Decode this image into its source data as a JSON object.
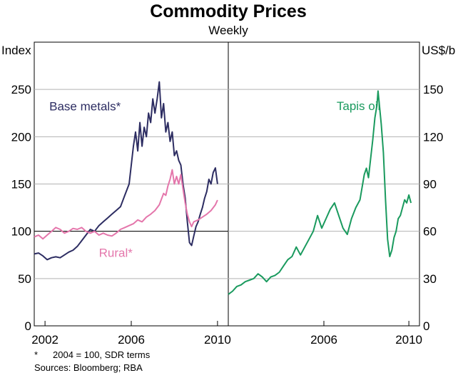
{
  "chart_data": {
    "type": "line",
    "title": "Commodity Prices",
    "subtitle": "Weekly",
    "panels": [
      {
        "unit_label": "Index",
        "y_ticks": [
          0,
          50,
          100,
          150,
          200,
          250
        ],
        "ylim": [
          0,
          300
        ],
        "xlim": [
          2001.5,
          2010.5
        ],
        "x_ticks": [
          "2002",
          "2006",
          "2010"
        ],
        "x_tick_values": [
          2002,
          2006,
          2010
        ],
        "reference_line": 100,
        "series": [
          {
            "name": "Base metals*",
            "color": "#2d2d62",
            "points": [
              [
                2001.5,
                76
              ],
              [
                2001.7,
                77
              ],
              [
                2001.9,
                74
              ],
              [
                2002.1,
                70
              ],
              [
                2002.3,
                72
              ],
              [
                2002.5,
                73
              ],
              [
                2002.7,
                72
              ],
              [
                2002.9,
                75
              ],
              [
                2003.1,
                78
              ],
              [
                2003.3,
                80
              ],
              [
                2003.5,
                84
              ],
              [
                2003.7,
                90
              ],
              [
                2003.9,
                96
              ],
              [
                2004.1,
                102
              ],
              [
                2004.3,
                100
              ],
              [
                2004.5,
                106
              ],
              [
                2004.7,
                110
              ],
              [
                2004.9,
                114
              ],
              [
                2005.1,
                118
              ],
              [
                2005.3,
                122
              ],
              [
                2005.5,
                126
              ],
              [
                2005.7,
                138
              ],
              [
                2005.9,
                150
              ],
              [
                2006.0,
                170
              ],
              [
                2006.1,
                190
              ],
              [
                2006.2,
                205
              ],
              [
                2006.3,
                185
              ],
              [
                2006.4,
                215
              ],
              [
                2006.5,
                190
              ],
              [
                2006.6,
                210
              ],
              [
                2006.7,
                200
              ],
              [
                2006.8,
                225
              ],
              [
                2006.9,
                215
              ],
              [
                2007.0,
                240
              ],
              [
                2007.1,
                225
              ],
              [
                2007.2,
                240
              ],
              [
                2007.3,
                258
              ],
              [
                2007.4,
                220
              ],
              [
                2007.5,
                235
              ],
              [
                2007.6,
                205
              ],
              [
                2007.7,
                215
              ],
              [
                2007.8,
                195
              ],
              [
                2007.9,
                205
              ],
              [
                2008.0,
                180
              ],
              [
                2008.1,
                185
              ],
              [
                2008.2,
                175
              ],
              [
                2008.3,
                170
              ],
              [
                2008.4,
                150
              ],
              [
                2008.5,
                135
              ],
              [
                2008.6,
                110
              ],
              [
                2008.7,
                88
              ],
              [
                2008.8,
                85
              ],
              [
                2008.9,
                95
              ],
              [
                2009.0,
                105
              ],
              [
                2009.1,
                110
              ],
              [
                2009.2,
                118
              ],
              [
                2009.3,
                125
              ],
              [
                2009.4,
                135
              ],
              [
                2009.5,
                142
              ],
              [
                2009.6,
                155
              ],
              [
                2009.7,
                150
              ],
              [
                2009.8,
                162
              ],
              [
                2009.9,
                167
              ],
              [
                2010.0,
                150
              ]
            ]
          },
          {
            "name": "Rural*",
            "color": "#e476ab",
            "points": [
              [
                2001.5,
                94
              ],
              [
                2001.7,
                96
              ],
              [
                2001.9,
                92
              ],
              [
                2002.1,
                96
              ],
              [
                2002.3,
                100
              ],
              [
                2002.5,
                104
              ],
              [
                2002.7,
                102
              ],
              [
                2002.9,
                98
              ],
              [
                2003.1,
                100
              ],
              [
                2003.3,
                103
              ],
              [
                2003.5,
                102
              ],
              [
                2003.7,
                104
              ],
              [
                2003.9,
                100
              ],
              [
                2004.1,
                98
              ],
              [
                2004.3,
                100
              ],
              [
                2004.5,
                96
              ],
              [
                2004.7,
                98
              ],
              [
                2004.9,
                96
              ],
              [
                2005.1,
                95
              ],
              [
                2005.3,
                98
              ],
              [
                2005.5,
                102
              ],
              [
                2005.7,
                104
              ],
              [
                2005.9,
                106
              ],
              [
                2006.1,
                108
              ],
              [
                2006.3,
                112
              ],
              [
                2006.5,
                110
              ],
              [
                2006.7,
                115
              ],
              [
                2006.9,
                118
              ],
              [
                2007.1,
                122
              ],
              [
                2007.3,
                128
              ],
              [
                2007.5,
                140
              ],
              [
                2007.6,
                138
              ],
              [
                2007.7,
                148
              ],
              [
                2007.8,
                155
              ],
              [
                2007.9,
                165
              ],
              [
                2008.0,
                150
              ],
              [
                2008.1,
                158
              ],
              [
                2008.2,
                150
              ],
              [
                2008.3,
                160
              ],
              [
                2008.4,
                145
              ],
              [
                2008.5,
                130
              ],
              [
                2008.6,
                118
              ],
              [
                2008.7,
                110
              ],
              [
                2008.8,
                105
              ],
              [
                2008.9,
                110
              ],
              [
                2009.1,
                112
              ],
              [
                2009.3,
                115
              ],
              [
                2009.5,
                118
              ],
              [
                2009.7,
                122
              ],
              [
                2009.9,
                128
              ],
              [
                2010.0,
                133
              ]
            ]
          }
        ],
        "series_labels": [
          {
            "text": "Base metals*",
            "color": "#2d2d62",
            "anchor_x": 2002.2,
            "anchor_y": 228
          },
          {
            "text": "Rural*",
            "color": "#e476ab",
            "anchor_x": 2004.5,
            "anchor_y": 73
          }
        ]
      },
      {
        "unit_label": "US$/b",
        "y_ticks": [
          0,
          30,
          60,
          90,
          120,
          150
        ],
        "ylim": [
          0,
          180
        ],
        "xlim": [
          2001.5,
          2010.5
        ],
        "x_ticks": [
          "2006",
          "2010"
        ],
        "x_tick_values": [
          2006,
          2010
        ],
        "reference_line": null,
        "series": [
          {
            "name": "Tapis oil",
            "color": "#1a9a5e",
            "points": [
              [
                2001.5,
                20
              ],
              [
                2001.7,
                22
              ],
              [
                2001.9,
                25
              ],
              [
                2002.1,
                26
              ],
              [
                2002.3,
                28
              ],
              [
                2002.5,
                29
              ],
              [
                2002.7,
                30
              ],
              [
                2002.9,
                33
              ],
              [
                2003.1,
                31
              ],
              [
                2003.3,
                28
              ],
              [
                2003.5,
                31
              ],
              [
                2003.7,
                32
              ],
              [
                2003.9,
                34
              ],
              [
                2004.1,
                38
              ],
              [
                2004.3,
                42
              ],
              [
                2004.5,
                44
              ],
              [
                2004.7,
                50
              ],
              [
                2004.9,
                45
              ],
              [
                2005.1,
                50
              ],
              [
                2005.3,
                55
              ],
              [
                2005.5,
                60
              ],
              [
                2005.7,
                70
              ],
              [
                2005.9,
                62
              ],
              [
                2006.1,
                68
              ],
              [
                2006.3,
                74
              ],
              [
                2006.5,
                78
              ],
              [
                2006.7,
                70
              ],
              [
                2006.9,
                62
              ],
              [
                2007.1,
                58
              ],
              [
                2007.3,
                68
              ],
              [
                2007.5,
                75
              ],
              [
                2007.7,
                80
              ],
              [
                2007.9,
                96
              ],
              [
                2008.0,
                100
              ],
              [
                2008.1,
                94
              ],
              [
                2008.2,
                106
              ],
              [
                2008.3,
                118
              ],
              [
                2008.4,
                132
              ],
              [
                2008.5,
                140
              ],
              [
                2008.55,
                149
              ],
              [
                2008.6,
                142
              ],
              [
                2008.7,
                128
              ],
              [
                2008.8,
                110
              ],
              [
                2008.9,
                80
              ],
              [
                2009.0,
                55
              ],
              [
                2009.1,
                44
              ],
              [
                2009.2,
                48
              ],
              [
                2009.3,
                56
              ],
              [
                2009.4,
                60
              ],
              [
                2009.5,
                68
              ],
              [
                2009.6,
                70
              ],
              [
                2009.7,
                75
              ],
              [
                2009.8,
                80
              ],
              [
                2009.9,
                78
              ],
              [
                2010.0,
                83
              ],
              [
                2010.1,
                78
              ]
            ]
          }
        ],
        "series_labels": [
          {
            "text": "Tapis oil",
            "color": "#1a9a5e",
            "anchor_x": 2006.6,
            "anchor_y": 137
          }
        ]
      }
    ]
  },
  "footnotes": {
    "asterisk_mark": "*",
    "asterisk_text": "2004 = 100, SDR terms",
    "sources": "Sources: Bloomberg; RBA"
  }
}
